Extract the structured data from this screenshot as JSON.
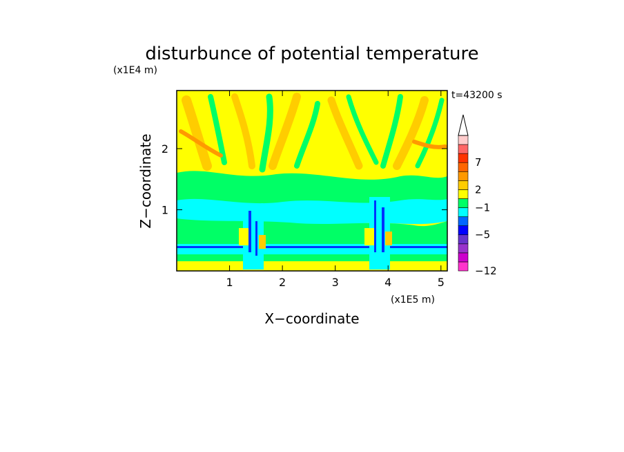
{
  "chart_data": {
    "type": "heatmap",
    "title": "disturbunce of potential temperature",
    "time_label": "t=43200 s",
    "xlabel": "X−coordinate",
    "ylabel": "Z−coordinate",
    "x_unit": "(x1E5 m)",
    "y_unit": "(x1E4 m)",
    "xlim": [
      0,
      5.12
    ],
    "ylim": [
      0,
      2.95
    ],
    "x_ticks": [
      {
        "value": 1,
        "label": "1"
      },
      {
        "value": 2,
        "label": "2"
      },
      {
        "value": 3,
        "label": "3"
      },
      {
        "value": 4,
        "label": "4"
      },
      {
        "value": 5,
        "label": "5"
      }
    ],
    "y_ticks": [
      {
        "value": 1,
        "label": "1"
      },
      {
        "value": 2,
        "label": "2"
      }
    ],
    "colorbar": {
      "extend_top": true,
      "colors": [
        "#ff33cc",
        "#cc00cc",
        "#9933cc",
        "#6633cc",
        "#0000ff",
        "#0066ff",
        "#00ffff",
        "#00ff66",
        "#ffff00",
        "#ffcc00",
        "#ff9900",
        "#ff6600",
        "#ff3300",
        "#ff6666",
        "#ffcccc"
      ],
      "tick_labels": [
        {
          "label": "−12",
          "index": 0
        },
        {
          "label": "−5",
          "index": 4
        },
        {
          "label": "−1",
          "index": 7
        },
        {
          "label": "2",
          "index": 9
        },
        {
          "label": "7",
          "index": 12
        }
      ]
    }
  }
}
